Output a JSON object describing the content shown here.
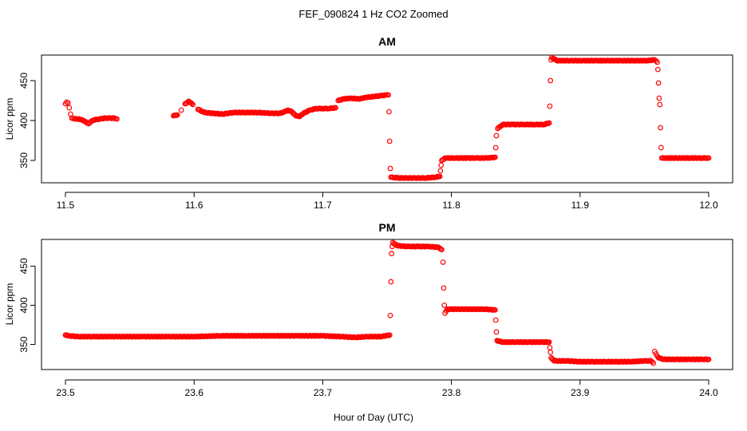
{
  "figure": {
    "title": "FEF_090824  1 Hz CO2 Zoomed",
    "xlabel": "Hour of Day (UTC)"
  },
  "colors": {
    "points": "#ff0000",
    "axes": "#000000"
  },
  "chart_data": [
    {
      "type": "scatter",
      "title": "AM",
      "xlabel": "Hour of Day (UTC)",
      "ylabel": "Licor ppm",
      "xlim": [
        11.5,
        12.0
      ],
      "ylim": [
        322,
        482
      ],
      "x_ticks": [
        "11.5",
        "11.6",
        "11.7",
        "11.8",
        "11.9",
        "12.0"
      ],
      "y_ticks": [
        "350",
        "400",
        "450"
      ],
      "grid": false,
      "series": [
        {
          "marker": "open-circle",
          "points": [
            [
              11.5,
              421
            ],
            [
              11.501,
              423
            ],
            [
              11.502,
              422
            ],
            [
              11.503,
              416
            ],
            [
              11.504,
              408
            ],
            [
              11.505,
              403
            ],
            [
              11.507,
              402
            ],
            [
              11.51,
              402
            ],
            [
              11.513,
              401
            ],
            [
              11.516,
              398
            ],
            [
              11.518,
              396
            ],
            [
              11.52,
              399
            ],
            [
              11.523,
              401
            ],
            [
              11.527,
              402
            ],
            [
              11.531,
              403
            ],
            [
              11.535,
              403
            ],
            [
              11.538,
              403
            ],
            [
              11.54,
              402
            ],
            [
              11.584,
              406
            ],
            [
              11.587,
              407
            ],
            [
              11.59,
              413
            ],
            [
              11.593,
              421
            ],
            [
              11.596,
              424
            ],
            [
              11.599,
              420
            ],
            [
              11.603,
              414
            ],
            [
              11.608,
              410
            ],
            [
              11.615,
              409
            ],
            [
              11.622,
              408
            ],
            [
              11.63,
              410
            ],
            [
              11.64,
              410
            ],
            [
              11.65,
              410
            ],
            [
              11.66,
              409
            ],
            [
              11.667,
              409
            ],
            [
              11.67,
              411
            ],
            [
              11.673,
              413
            ],
            [
              11.676,
              411
            ],
            [
              11.679,
              406
            ],
            [
              11.682,
              405
            ],
            [
              11.685,
              409
            ],
            [
              11.69,
              413
            ],
            [
              11.695,
              415
            ],
            [
              11.7,
              415
            ],
            [
              11.705,
              415
            ],
            [
              11.71,
              416
            ],
            [
              11.712,
              425
            ],
            [
              11.716,
              427
            ],
            [
              11.722,
              428
            ],
            [
              11.728,
              427
            ],
            [
              11.734,
              429
            ],
            [
              11.74,
              430
            ],
            [
              11.745,
              431
            ],
            [
              11.749,
              432
            ],
            [
              11.751,
              432
            ],
            [
              11.7515,
              411
            ],
            [
              11.752,
              374
            ],
            [
              11.7525,
              340
            ],
            [
              11.753,
              329
            ],
            [
              11.758,
              328
            ],
            [
              11.765,
              328
            ],
            [
              11.772,
              328
            ],
            [
              11.78,
              328
            ],
            [
              11.788,
              329
            ],
            [
              11.791,
              330
            ],
            [
              11.7915,
              337
            ],
            [
              11.792,
              344
            ],
            [
              11.7925,
              350
            ],
            [
              11.795,
              353
            ],
            [
              11.803,
              353
            ],
            [
              11.812,
              353
            ],
            [
              11.82,
              353
            ],
            [
              11.828,
              353
            ],
            [
              11.834,
              354
            ],
            [
              11.8345,
              366
            ],
            [
              11.835,
              381
            ],
            [
              11.836,
              390
            ],
            [
              11.84,
              395
            ],
            [
              11.848,
              395
            ],
            [
              11.856,
              395
            ],
            [
              11.864,
              395
            ],
            [
              11.872,
              395
            ],
            [
              11.876,
              397
            ],
            [
              11.8765,
              418
            ],
            [
              11.877,
              450
            ],
            [
              11.8775,
              476
            ],
            [
              11.878,
              479
            ],
            [
              11.882,
              475
            ],
            [
              11.892,
              475
            ],
            [
              11.902,
              475
            ],
            [
              11.912,
              475
            ],
            [
              11.922,
              475
            ],
            [
              11.932,
              475
            ],
            [
              11.942,
              475
            ],
            [
              11.952,
              475
            ],
            [
              11.958,
              476
            ],
            [
              11.96,
              473
            ],
            [
              11.9605,
              464
            ],
            [
              11.961,
              447
            ],
            [
              11.9615,
              428
            ],
            [
              11.962,
              420
            ],
            [
              11.9625,
              391
            ],
            [
              11.963,
              366
            ],
            [
              11.9635,
              353
            ],
            [
              11.966,
              353
            ],
            [
              11.975,
              353
            ],
            [
              11.985,
              353
            ],
            [
              11.995,
              353
            ],
            [
              12.0,
              353
            ]
          ]
        }
      ]
    },
    {
      "type": "scatter",
      "title": "PM",
      "xlabel": "Hour of Day (UTC)",
      "ylabel": "Licor ppm",
      "xlim": [
        23.5,
        24.0
      ],
      "ylim": [
        318,
        484
      ],
      "x_ticks": [
        "23.5",
        "23.6",
        "23.7",
        "23.8",
        "23.9",
        "24.0"
      ],
      "y_ticks": [
        "350",
        "400",
        "450"
      ],
      "grid": false,
      "series": [
        {
          "marker": "open-circle",
          "points": [
            [
              23.5,
              362
            ],
            [
              23.503,
              361
            ],
            [
              23.51,
              360
            ],
            [
              23.52,
              360
            ],
            [
              23.54,
              360
            ],
            [
              23.56,
              360
            ],
            [
              23.58,
              360
            ],
            [
              23.6,
              360
            ],
            [
              23.62,
              361
            ],
            [
              23.64,
              361
            ],
            [
              23.66,
              361
            ],
            [
              23.68,
              361
            ],
            [
              23.7,
              361
            ],
            [
              23.715,
              360
            ],
            [
              23.725,
              359
            ],
            [
              23.735,
              360
            ],
            [
              23.745,
              360
            ],
            [
              23.752,
              362
            ],
            [
              23.7525,
              387
            ],
            [
              23.753,
              430
            ],
            [
              23.7535,
              466
            ],
            [
              23.754,
              475
            ],
            [
              23.7545,
              480
            ],
            [
              23.758,
              476
            ],
            [
              23.766,
              475
            ],
            [
              23.774,
              475
            ],
            [
              23.782,
              475
            ],
            [
              23.79,
              474
            ],
            [
              23.7925,
              471
            ],
            [
              23.7935,
              455
            ],
            [
              23.794,
              422
            ],
            [
              23.7945,
              400
            ],
            [
              23.795,
              390
            ],
            [
              23.797,
              395
            ],
            [
              23.806,
              395
            ],
            [
              23.816,
              395
            ],
            [
              23.826,
              395
            ],
            [
              23.834,
              394
            ],
            [
              23.8345,
              381
            ],
            [
              23.835,
              366
            ],
            [
              23.8355,
              355
            ],
            [
              23.84,
              353
            ],
            [
              23.85,
              353
            ],
            [
              23.86,
              353
            ],
            [
              23.87,
              353
            ],
            [
              23.876,
              353
            ],
            [
              23.8765,
              346
            ],
            [
              23.877,
              340
            ],
            [
              23.8775,
              333
            ],
            [
              23.88,
              329
            ],
            [
              23.89,
              329
            ],
            [
              23.9,
              328
            ],
            [
              23.91,
              328
            ],
            [
              23.92,
              328
            ],
            [
              23.93,
              328
            ],
            [
              23.94,
              328
            ],
            [
              23.95,
              329
            ],
            [
              23.955,
              329
            ],
            [
              23.957,
              326
            ],
            [
              23.958,
              341
            ],
            [
              23.959,
              338
            ],
            [
              23.961,
              333
            ],
            [
              23.965,
              331
            ],
            [
              23.975,
              331
            ],
            [
              23.985,
              331
            ],
            [
              23.995,
              331
            ],
            [
              24.0,
              331
            ]
          ]
        }
      ]
    }
  ]
}
